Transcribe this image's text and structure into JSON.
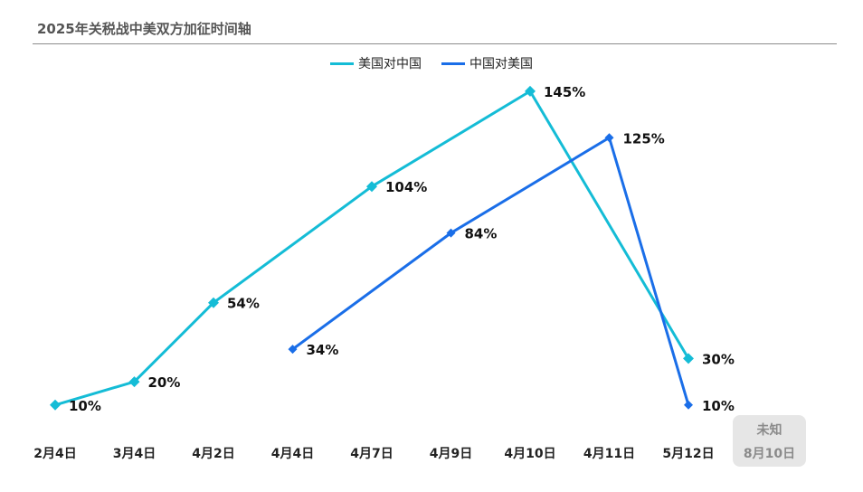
{
  "header": {
    "title": "2025年关税战中美双方加征时间轴"
  },
  "colors": {
    "us": "#14bcd6",
    "cn": "#1a6ee8"
  },
  "badge": {
    "line1": "未知",
    "line2": "8月10日"
  },
  "chart_data": {
    "type": "line",
    "title": "2025年关税战中美双方加征时间轴",
    "categories": [
      "2月4日",
      "3月4日",
      "4月2日",
      "4月4日",
      "4月7日",
      "4月9日",
      "4月10日",
      "4月11日",
      "5月12日"
    ],
    "ylim": [
      0,
      150
    ],
    "grid": false,
    "legend": "top-center",
    "series": [
      {
        "name": "美国对中国",
        "color": "#14bcd6",
        "marker": "diamond",
        "points": [
          {
            "x": "2月4日",
            "y": 10,
            "label": "10%"
          },
          {
            "x": "3月4日",
            "y": 20,
            "label": "20%"
          },
          {
            "x": "4月2日",
            "y": 54,
            "label": "54%"
          },
          {
            "x": "4月7日",
            "y": 104,
            "label": "104%"
          },
          {
            "x": "4月10日",
            "y": 145,
            "label": "145%"
          },
          {
            "x": "5月12日",
            "y": 30,
            "label": "30%"
          }
        ]
      },
      {
        "name": "中国对美国",
        "color": "#1a6ee8",
        "marker": "diamond",
        "points": [
          {
            "x": "4月4日",
            "y": 34,
            "label": "34%"
          },
          {
            "x": "4月9日",
            "y": 84,
            "label": "84%"
          },
          {
            "x": "4月11日",
            "y": 125,
            "label": "125%"
          },
          {
            "x": "5月12日",
            "y": 10,
            "label": "10%"
          }
        ]
      }
    ]
  }
}
